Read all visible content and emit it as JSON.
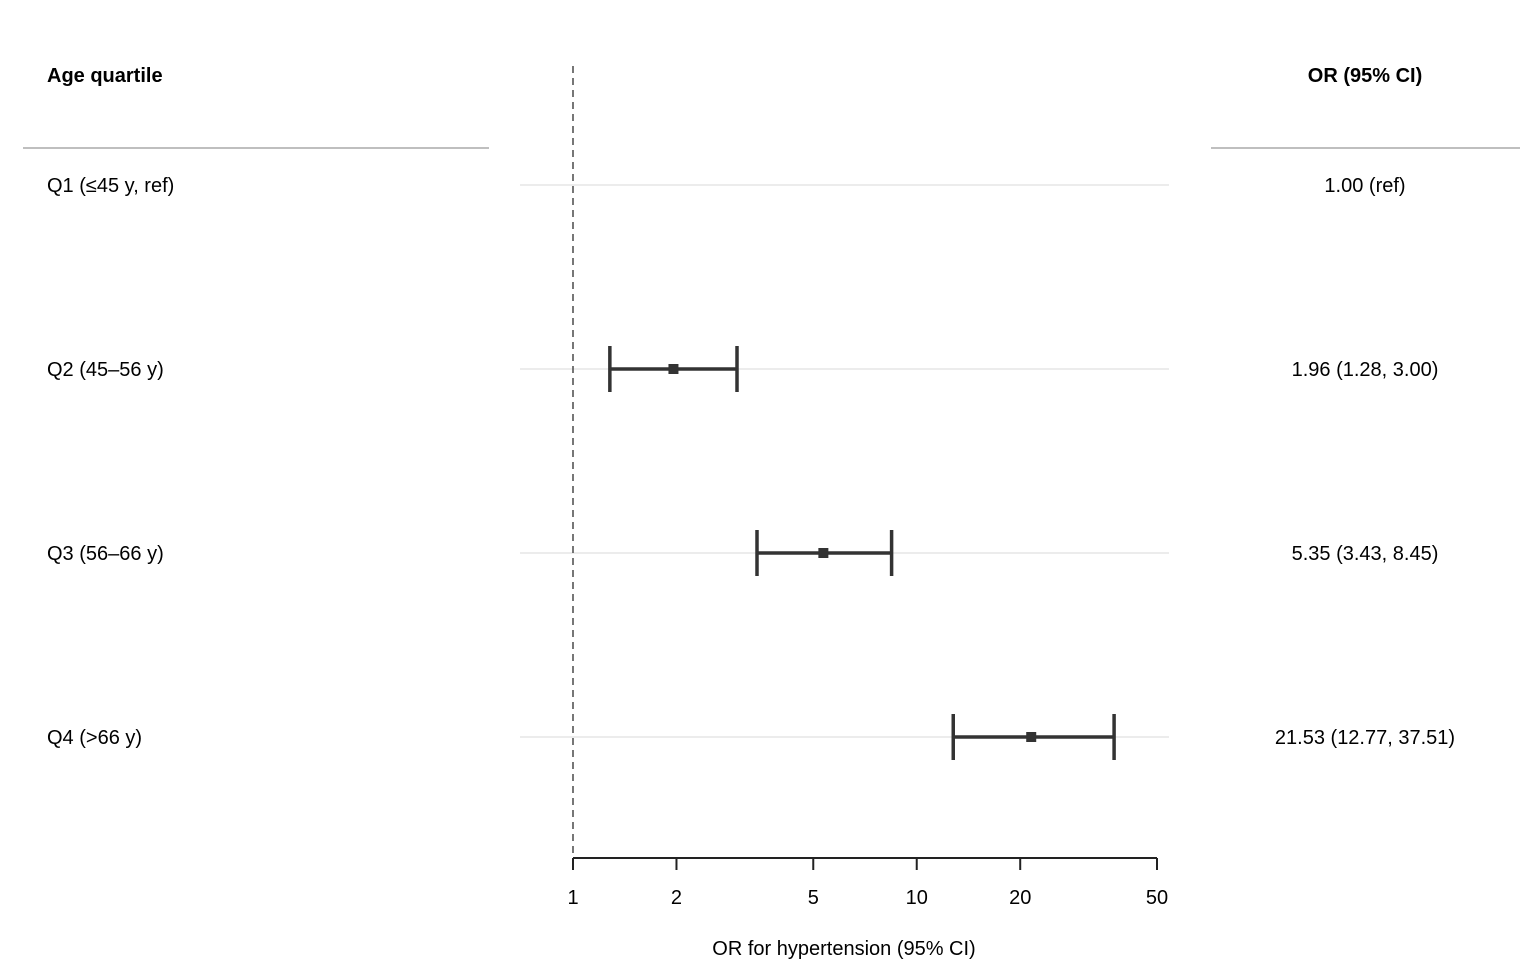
{
  "chart_data": {
    "type": "forest",
    "x_scale": "log",
    "xlim": [
      1,
      50
    ],
    "xlabel": "OR for hypertension (95% CI)",
    "reference_line": 1,
    "x_ticks": [
      1,
      2,
      5,
      10,
      20,
      50
    ],
    "x_tick_labels": [
      "1",
      "2",
      "5",
      "10",
      "20",
      "50"
    ],
    "left_header": "Age quartile",
    "right_header": "OR (95% CI)",
    "rows": [
      {
        "label": "Q1 (≤45 y, ref)",
        "or": 1.0,
        "lower": null,
        "upper": null,
        "text": "1.00 (ref)"
      },
      {
        "label": "Q2 (45–56 y)",
        "or": 1.96,
        "lower": 1.28,
        "upper": 3.0,
        "text": "1.96 (1.28, 3.00)"
      },
      {
        "label": "Q3 (56–66 y)",
        "or": 5.35,
        "lower": 3.43,
        "upper": 8.45,
        "text": "5.35 (3.43, 8.45)"
      },
      {
        "label": "Q4 (>66 y)",
        "or": 21.53,
        "lower": 12.77,
        "upper": 37.51,
        "text": "21.53 (12.77, 37.51)"
      }
    ],
    "colors": {
      "marks": "#333333",
      "row_line": "#e6e6e6",
      "header_rule": "#aaaaaa",
      "ref_line": "#555555"
    }
  }
}
